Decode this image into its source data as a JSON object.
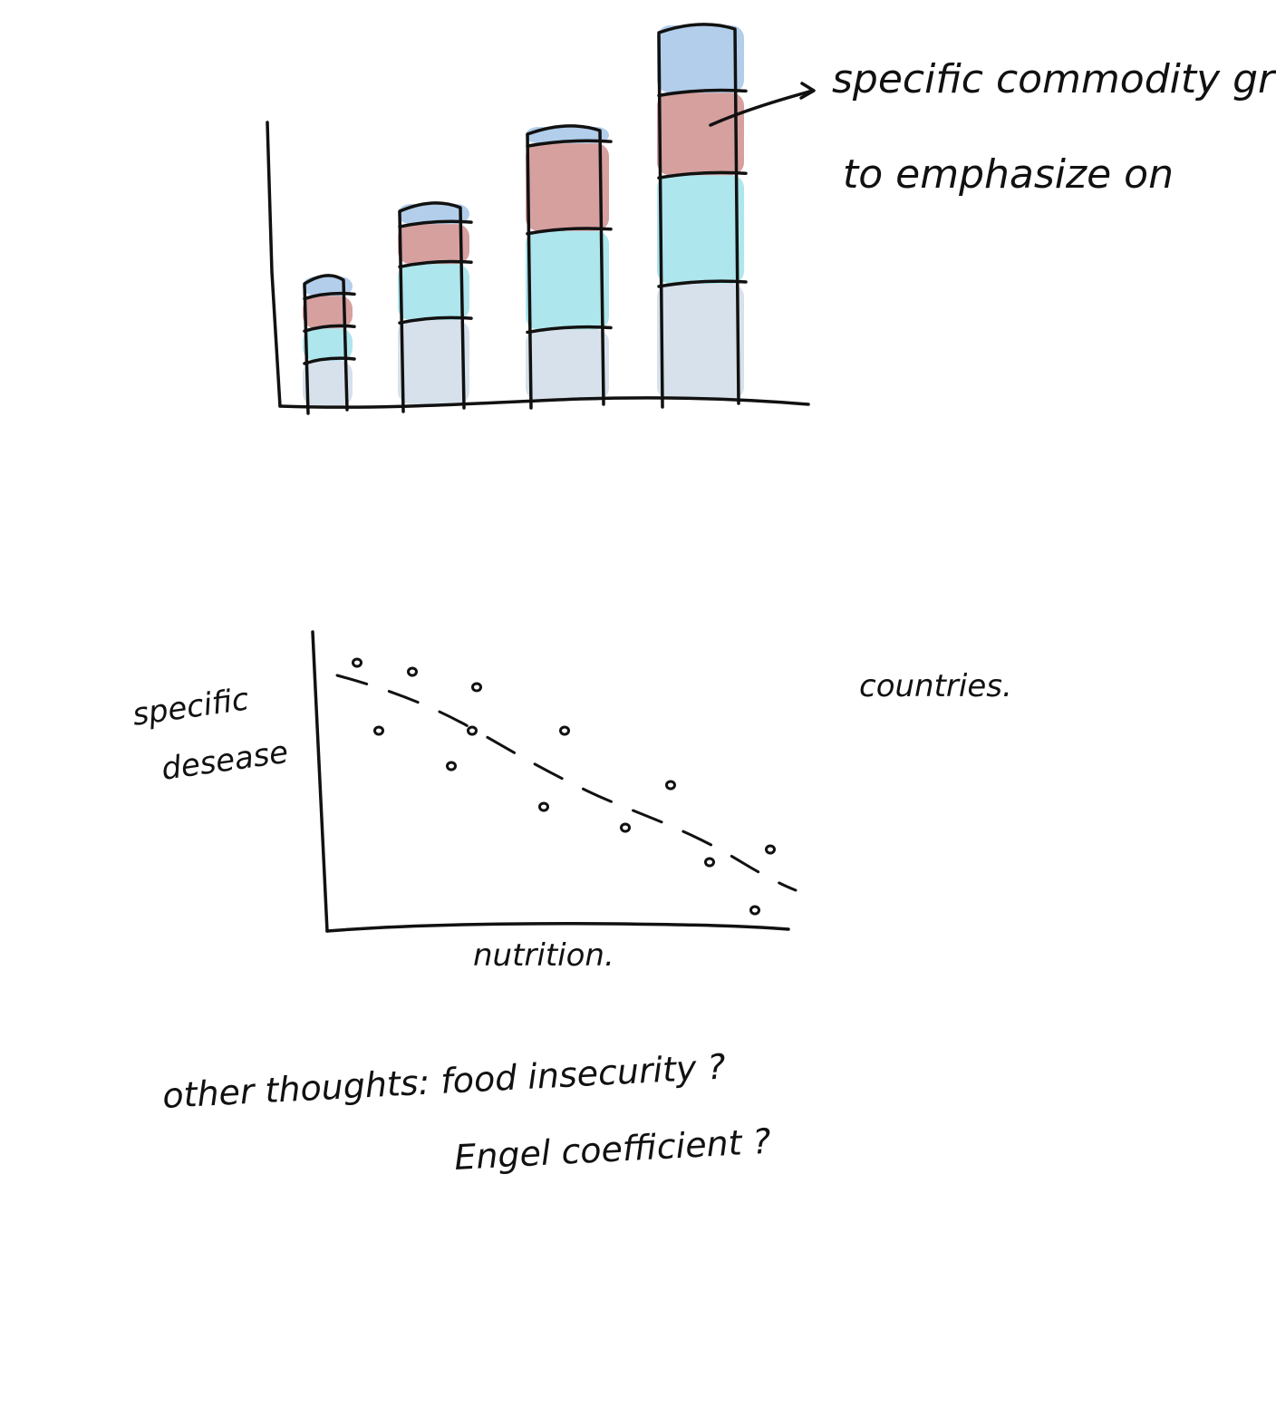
{
  "colors": {
    "ink": "#111111",
    "segment_bottom": "#d5dfea",
    "segment_lower": "#a9e5ec",
    "segment_upper": "#d49b9a",
    "segment_top": "#aecbea"
  },
  "bar_sketch": {
    "annotation": [
      "specific commodity group",
      "to emphasize on"
    ],
    "bars": [
      {
        "segments": [
          0.35,
          0.25,
          0.25,
          0.15
        ]
      },
      {
        "segments": [
          0.42,
          0.28,
          0.2,
          0.1
        ]
      },
      {
        "segments": [
          0.26,
          0.36,
          0.32,
          0.06
        ]
      },
      {
        "segments": [
          0.31,
          0.29,
          0.22,
          0.18
        ]
      }
    ]
  },
  "scatter_sketch": {
    "y_label": [
      "specific",
      "desease"
    ],
    "x_label": "nutrition.",
    "side_note": "countries."
  },
  "notes": {
    "line1": "other thoughts:  food  insecurity ?",
    "line2": "Engel  coefficient ?"
  }
}
